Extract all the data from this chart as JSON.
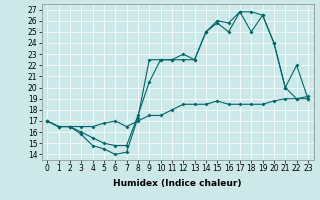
{
  "title": "",
  "xlabel": "Humidex (Indice chaleur)",
  "bg_color": "#cce8e8",
  "line_color": "#006666",
  "grid_color": "#ffffff",
  "xlim": [
    -0.5,
    23.5
  ],
  "ylim": [
    13.5,
    27.5
  ],
  "yticks": [
    14,
    15,
    16,
    17,
    18,
    19,
    20,
    21,
    22,
    23,
    24,
    25,
    26,
    27
  ],
  "xticks": [
    0,
    1,
    2,
    3,
    4,
    5,
    6,
    7,
    8,
    9,
    10,
    11,
    12,
    13,
    14,
    15,
    16,
    17,
    18,
    19,
    20,
    21,
    22,
    23
  ],
  "series1_x": [
    0,
    1,
    2,
    3,
    4,
    5,
    6,
    7,
    8,
    9,
    10,
    11,
    12,
    13,
    14,
    15,
    16,
    17,
    18,
    19,
    20,
    21,
    22,
    23
  ],
  "series1_y": [
    17.0,
    16.5,
    16.5,
    15.8,
    14.8,
    14.5,
    14.0,
    14.2,
    17.3,
    22.5,
    22.5,
    22.5,
    23.0,
    22.5,
    25.0,
    26.0,
    25.8,
    26.8,
    26.8,
    26.5,
    24.0,
    20.0,
    19.0,
    19.0
  ],
  "series2_x": [
    0,
    1,
    2,
    3,
    4,
    5,
    6,
    7,
    8,
    9,
    10,
    11,
    12,
    13,
    14,
    15,
    16,
    17,
    18,
    19,
    20,
    21,
    22,
    23
  ],
  "series2_y": [
    17.0,
    16.5,
    16.5,
    16.0,
    15.5,
    15.0,
    14.8,
    14.8,
    17.5,
    20.5,
    22.5,
    22.5,
    22.5,
    22.5,
    25.0,
    25.8,
    25.0,
    26.8,
    25.0,
    26.5,
    24.0,
    20.0,
    22.0,
    19.0
  ],
  "series3_x": [
    0,
    1,
    2,
    3,
    4,
    5,
    6,
    7,
    8,
    9,
    10,
    11,
    12,
    13,
    14,
    15,
    16,
    17,
    18,
    19,
    20,
    21,
    22,
    23
  ],
  "series3_y": [
    17.0,
    16.5,
    16.5,
    16.5,
    16.5,
    16.8,
    17.0,
    16.5,
    17.0,
    17.5,
    17.5,
    18.0,
    18.5,
    18.5,
    18.5,
    18.8,
    18.5,
    18.5,
    18.5,
    18.5,
    18.8,
    19.0,
    19.0,
    19.2
  ],
  "tick_fontsize": 5.5,
  "xlabel_fontsize": 6.5
}
